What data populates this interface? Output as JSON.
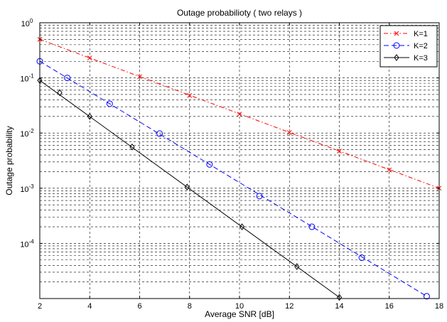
{
  "chart_data": {
    "type": "line",
    "title": "Outage probabilioty ( two relays )",
    "xlabel": "Average SNR [dB]",
    "ylabel": "Outage probability",
    "xscale": "linear",
    "yscale": "log",
    "xlim": [
      2,
      18
    ],
    "ylim": [
      1e-05,
      1
    ],
    "xticks": [
      2,
      4,
      6,
      8,
      10,
      12,
      14,
      16,
      18
    ],
    "yticks": [
      {
        "value": 1,
        "base": "10",
        "exp": "0"
      },
      {
        "value": 0.1,
        "base": "10",
        "exp": "-1"
      },
      {
        "value": 0.01,
        "base": "10",
        "exp": "-2"
      },
      {
        "value": 0.001,
        "base": "10",
        "exp": "-3"
      },
      {
        "value": 0.0001,
        "base": "10",
        "exp": "-4"
      }
    ],
    "grid": true,
    "legend": {
      "position": "top-right"
    },
    "series": [
      {
        "name": "K=1",
        "color": "#ff0000",
        "line_style": "dash-dot",
        "marker": "x",
        "line_x": [
          2,
          18
        ],
        "line_y": [
          0.5,
          0.001
        ],
        "points_x": [
          2,
          4,
          6,
          8,
          10,
          12,
          14,
          16,
          18
        ],
        "points_y": [
          0.5,
          0.23,
          0.105,
          0.048,
          0.022,
          0.0102,
          0.0047,
          0.00215,
          0.001
        ]
      },
      {
        "name": "K=2",
        "color": "#0000ff",
        "line_style": "dashed",
        "marker": "o",
        "line_x": [
          2,
          17.5
        ],
        "line_y": [
          0.2,
          1.1e-05
        ],
        "points_x": [
          2,
          3.1,
          4.8,
          6.8,
          8.8,
          10.8,
          12.9,
          14.9,
          17.5
        ],
        "points_y": [
          0.2,
          0.1,
          0.034,
          0.0098,
          0.0027,
          0.00072,
          0.0002,
          5.5e-05,
          1.1e-05
        ]
      },
      {
        "name": "K=3",
        "color": "#000000",
        "line_style": "solid",
        "marker": "diamond",
        "line_x": [
          2,
          14
        ],
        "line_y": [
          0.09,
          1.05e-05
        ],
        "points_x": [
          2,
          2.8,
          4,
          5.7,
          7.9,
          10.1,
          12.3,
          14
        ],
        "points_y": [
          0.09,
          0.054,
          0.02,
          0.0056,
          0.00105,
          0.0002,
          3.8e-05,
          1.05e-05
        ]
      }
    ]
  }
}
